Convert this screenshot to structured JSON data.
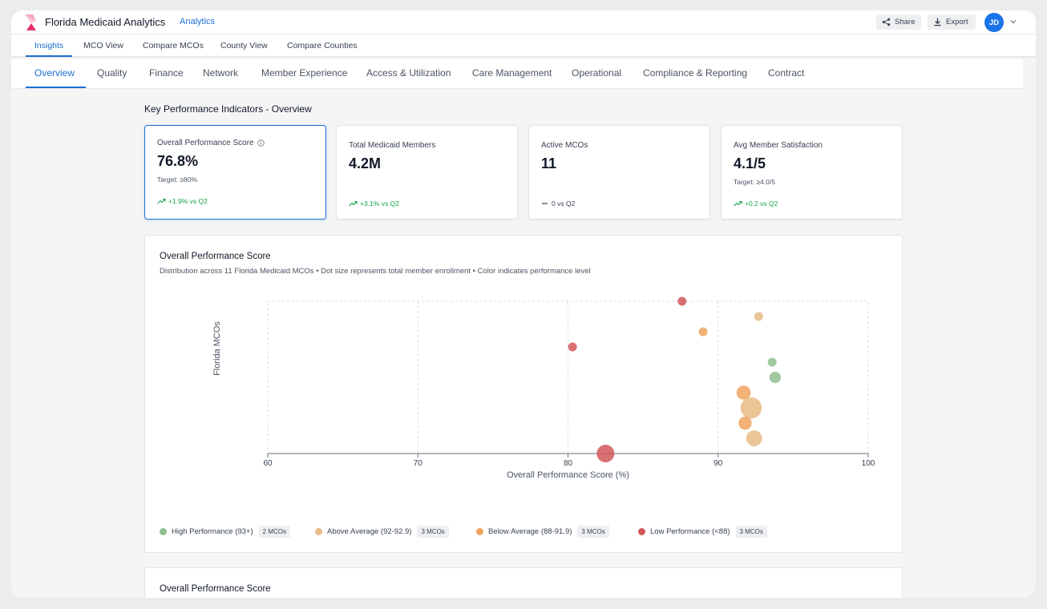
{
  "header": {
    "app_title": "Florida Medicaid Analytics",
    "section_link": "Analytics",
    "share_label": "Share",
    "export_label": "Export",
    "avatar_initials": "JD"
  },
  "nav": {
    "items": [
      {
        "label": "Insights",
        "active": true
      },
      {
        "label": "MCO View"
      },
      {
        "label": "Compare MCOs"
      },
      {
        "label": "County View"
      },
      {
        "label": "Compare Counties"
      }
    ]
  },
  "tabs": {
    "items": [
      {
        "label": "Overview",
        "active": true
      },
      {
        "label": "Quality"
      },
      {
        "label": "Finance"
      },
      {
        "label": "Network"
      },
      {
        "label": "Member Experience"
      },
      {
        "label": "Access & Utilization"
      },
      {
        "label": "Care Management"
      },
      {
        "label": "Operational"
      },
      {
        "label": "Compliance & Reporting"
      },
      {
        "label": "Contract"
      }
    ]
  },
  "kpi_section": {
    "heading": "Key Performance Indicators - Overview",
    "cards": [
      {
        "label": "Overall Performance Score",
        "value": "76.8%",
        "target": "Target: ≥80%",
        "trend": "+1.9% vs Q2",
        "trend_type": "up",
        "info_icon": "info-icon",
        "selected": true
      },
      {
        "label": "Total Medicaid Members",
        "value": "4.2M",
        "target": "",
        "trend": "+3.1% vs Q2",
        "trend_type": "up"
      },
      {
        "label": "Active MCOs",
        "value": "11",
        "target": "",
        "trend": "0 vs Q2",
        "trend_type": "neutral"
      },
      {
        "label": "Avg Member Satisfaction",
        "value": "4.1/5",
        "target": "Target: ≥4.0/5",
        "trend": "+0.2 vs Q2",
        "trend_type": "up"
      }
    ]
  },
  "chart_panel": {
    "title": "Overall Performance Score",
    "subtitle": "Distribution across 11 Florida Medicaid MCOs • Dot size represents total member enrollment • Color indicates performance level"
  },
  "chart_data": {
    "type": "scatter",
    "title": "Overall Performance Score",
    "xlabel": "Overall Performance Score (%)",
    "ylabel": "Florida MCOs",
    "xlim": [
      60,
      100
    ],
    "xticks": [
      60,
      70,
      80,
      90,
      100
    ],
    "ylim": [
      0,
      10
    ],
    "grid": true,
    "legend_position": "bottom",
    "colors": {
      "high": "#8fbf8f",
      "above": "#e6bb84",
      "below": "#f0a35e",
      "low": "#d2575b"
    },
    "points": [
      {
        "x": 87.6,
        "y": 10,
        "size": 1,
        "group": "low"
      },
      {
        "x": 92.7,
        "y": 9,
        "size": 1,
        "group": "above"
      },
      {
        "x": 89.0,
        "y": 8,
        "size": 1,
        "group": "below"
      },
      {
        "x": 80.3,
        "y": 7,
        "size": 1,
        "group": "low"
      },
      {
        "x": 93.6,
        "y": 6,
        "size": 1,
        "group": "high"
      },
      {
        "x": 93.8,
        "y": 5,
        "size": 1.3,
        "group": "high"
      },
      {
        "x": 91.7,
        "y": 4,
        "size": 1.6,
        "group": "below"
      },
      {
        "x": 92.2,
        "y": 3,
        "size": 2.4,
        "group": "above"
      },
      {
        "x": 91.8,
        "y": 2,
        "size": 1.5,
        "group": "below"
      },
      {
        "x": 92.4,
        "y": 1,
        "size": 1.8,
        "group": "above"
      },
      {
        "x": 82.5,
        "y": 0,
        "size": 2.0,
        "group": "low"
      }
    ],
    "legend": [
      {
        "label": "High Performance (93+)",
        "count": "2 MCOs",
        "group": "high"
      },
      {
        "label": "Above Average (92-92.9)",
        "count": "3 MCOs",
        "group": "above"
      },
      {
        "label": "Below Average (88-91.9)",
        "count": "3 MCOs",
        "group": "below"
      },
      {
        "label": "Low Performance (<88)",
        "count": "3 MCOs",
        "group": "low"
      }
    ]
  },
  "second_panel": {
    "title": "Overall Performance Score"
  }
}
